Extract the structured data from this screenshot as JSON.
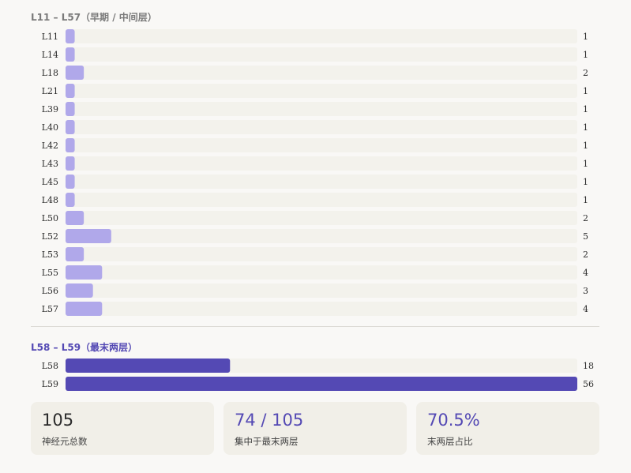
{
  "sections": {
    "early_title": "L11 – L57（早期 / 中间层）",
    "late_title": "L58 – L59（最末两层）"
  },
  "colors": {
    "early_bar": "#b0a8ea",
    "late_bar": "#5449b4",
    "track": "#f3f2ec",
    "accent_text": "#5449b4"
  },
  "chart_data": [
    {
      "type": "bar",
      "orientation": "horizontal",
      "title": "L11 – L57（早期 / 中间层）",
      "categories": [
        "L11",
        "L14",
        "L18",
        "L21",
        "L39",
        "L40",
        "L42",
        "L43",
        "L45",
        "L48",
        "L50",
        "L52",
        "L53",
        "L55",
        "L56",
        "L57"
      ],
      "values": [
        1,
        1,
        2,
        1,
        1,
        1,
        1,
        1,
        1,
        1,
        2,
        5,
        2,
        4,
        3,
        4
      ],
      "xlim": [
        0,
        56
      ],
      "grid": false,
      "data_labels": true
    },
    {
      "type": "bar",
      "orientation": "horizontal",
      "title": "L58 – L59（最末两层）",
      "categories": [
        "L58",
        "L59"
      ],
      "values": [
        18,
        56
      ],
      "xlim": [
        0,
        56
      ],
      "grid": false,
      "data_labels": true
    }
  ],
  "stats": [
    {
      "value": "105",
      "label": "神经元总数",
      "accent": false
    },
    {
      "value": "74 / 105",
      "label": "集中于最末两层",
      "accent": true
    },
    {
      "value": "70.5%",
      "label": "末两层占比",
      "accent": true
    }
  ]
}
